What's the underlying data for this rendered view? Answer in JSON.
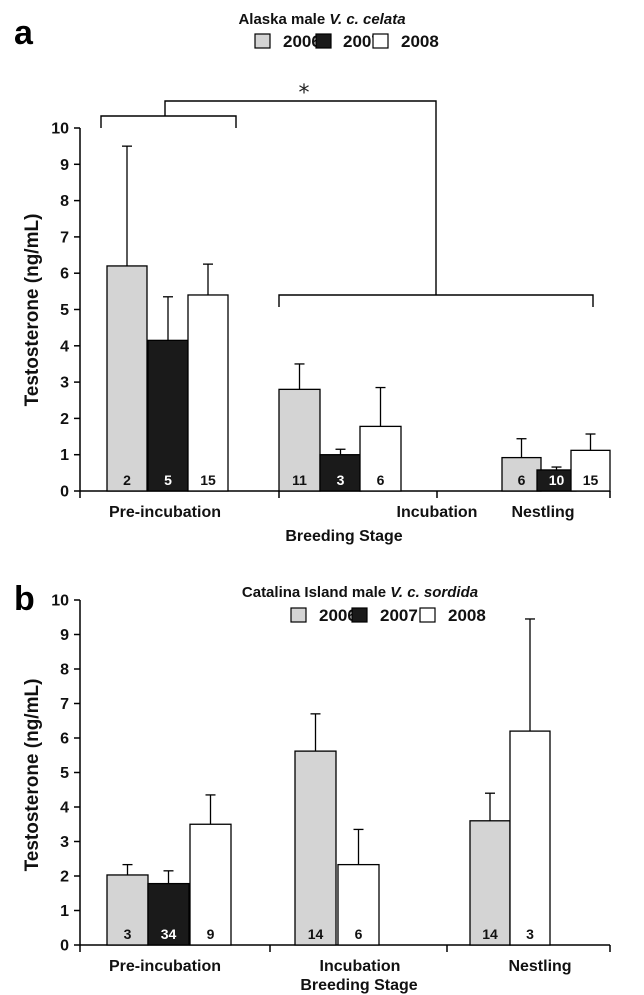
{
  "chart_data": [
    {
      "panel": "a",
      "type": "bar",
      "title_prefix": "Alaska male ",
      "title_species": "V. c. celata",
      "xlabel": "Breeding Stage",
      "ylabel": "Testosterone (ng/mL)",
      "ylim": [
        0,
        10
      ],
      "yticks": [
        0,
        1,
        2,
        3,
        4,
        5,
        6,
        7,
        8,
        9,
        10
      ],
      "categories": [
        "Pre-incubation",
        "Incubation",
        "Nestling"
      ],
      "series": [
        {
          "name": "2006",
          "color": "#d4d4d4",
          "values": [
            6.2,
            2.8,
            0.92
          ],
          "errors": [
            3.3,
            0.7,
            0.52
          ],
          "n": [
            "2",
            "11",
            "6"
          ]
        },
        {
          "name": "2007",
          "color": "#1a1a1a",
          "values": [
            4.15,
            1.0,
            0.58
          ],
          "errors": [
            1.2,
            0.15,
            0.08
          ],
          "n": [
            "5",
            "3",
            "10"
          ]
        },
        {
          "name": "2008",
          "color": "#ffffff",
          "values": [
            5.4,
            1.78,
            1.12
          ],
          "errors": [
            0.85,
            1.07,
            0.45
          ],
          "n": [
            "15",
            "6",
            "15"
          ]
        }
      ],
      "significance": "*"
    },
    {
      "panel": "b",
      "type": "bar",
      "title_prefix": "Catalina Island male ",
      "title_species": "V. c. sordida",
      "xlabel": "Breeding Stage",
      "ylabel": "Testosterone (ng/mL)",
      "ylim": [
        0,
        10
      ],
      "yticks": [
        0,
        1,
        2,
        3,
        4,
        5,
        6,
        7,
        8,
        9,
        10
      ],
      "categories": [
        "Pre-incubation",
        "Incubation",
        "Nestling"
      ],
      "series": [
        {
          "name": "2006",
          "color": "#d4d4d4",
          "values": [
            2.03,
            5.62,
            3.6
          ],
          "errors": [
            0.3,
            1.08,
            0.8
          ],
          "n": [
            "3",
            "14",
            "14"
          ]
        },
        {
          "name": "2007",
          "color": "#1a1a1a",
          "values": [
            1.78,
            null,
            null
          ],
          "errors": [
            0.37,
            null,
            null
          ],
          "n": [
            "34",
            "",
            ""
          ]
        },
        {
          "name": "2008",
          "color": "#ffffff",
          "values": [
            3.5,
            2.33,
            6.2
          ],
          "errors": [
            0.85,
            1.02,
            3.25
          ],
          "n": [
            "9",
            "6",
            "3"
          ]
        }
      ]
    }
  ]
}
